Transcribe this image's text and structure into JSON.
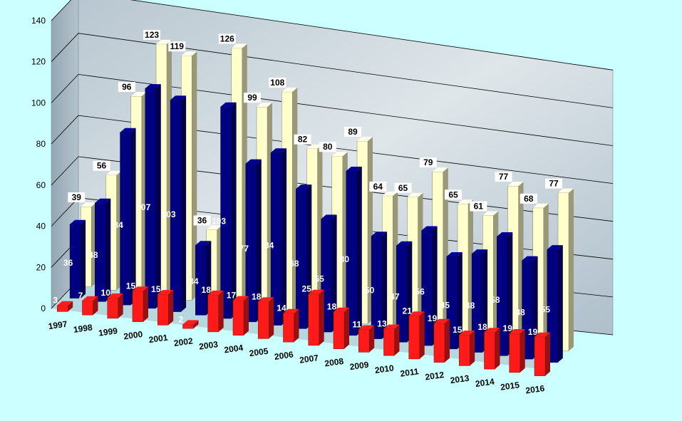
{
  "chart_data": {
    "type": "bar",
    "variant": "3d-clustered-column",
    "categories": [
      "1997",
      "1998",
      "1999",
      "2000",
      "2001",
      "2002",
      "2003",
      "2004",
      "2005",
      "2006",
      "2007",
      "2008",
      "2009",
      "2010",
      "2011",
      "2012",
      "2013",
      "2014",
      "2015",
      "2016"
    ],
    "series": [
      {
        "color": "#ff1a1a",
        "values": [
          3,
          7,
          10,
          15,
          15,
          2,
          18,
          17,
          18,
          14,
          25,
          18,
          11,
          13,
          21,
          19,
          15,
          18,
          19,
          19
        ]
      },
      {
        "color": "#000080",
        "values": [
          36,
          48,
          84,
          107,
          103,
          34,
          103,
          77,
          84,
          68,
          55,
          80,
          50,
          47,
          56,
          45,
          48,
          58,
          48,
          55
        ]
      },
      {
        "color": "#ffffcc",
        "values": [
          39,
          56,
          96,
          123,
          119,
          36,
          126,
          99,
          108,
          82,
          80,
          89,
          64,
          65,
          79,
          65,
          61,
          77,
          68,
          77
        ]
      }
    ],
    "y_ticks": [
      "0",
      "20",
      "40",
      "60",
      "80",
      "100",
      "120",
      "140"
    ],
    "ylim": [
      0,
      140
    ],
    "grid": true,
    "legend": "none",
    "title": "",
    "xlabel": "",
    "ylabel": ""
  }
}
